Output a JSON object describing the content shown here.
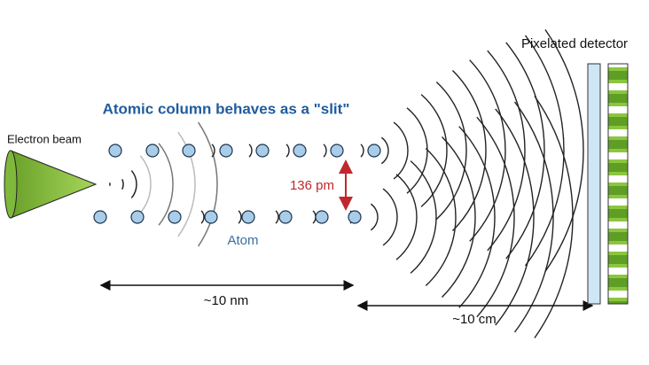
{
  "title": "Atomic column behaves as a \"slit\"",
  "labels": {
    "electron_beam": "Electron beam",
    "spacing": "136 pm",
    "atom": "Atom",
    "detector": "Pixelated detector",
    "distance_column": "~10 nm",
    "distance_detector": "~10 cm"
  }
}
